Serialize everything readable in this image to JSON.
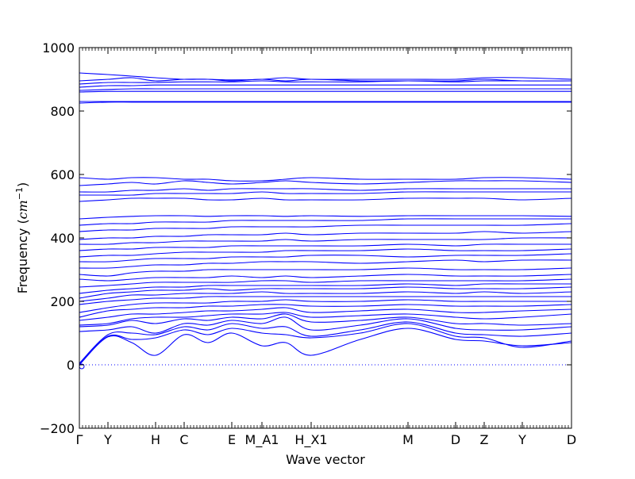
{
  "chart_data": {
    "type": "line",
    "title": "",
    "xlabel": "Wave vector",
    "ylabel": "Frequency ($cm^{-1}$)",
    "ylabel_parts": {
      "text": "Frequency (",
      "math_base": "cm",
      "math_sup": "−1",
      "close": ")"
    },
    "ylim": [
      -200,
      1000
    ],
    "xlim": [
      0,
      31
    ],
    "yticks": [
      "−200",
      "0",
      "200",
      "400",
      "600",
      "800",
      "1000"
    ],
    "ytick_values": [
      -200,
      0,
      200,
      400,
      600,
      800,
      1000
    ],
    "xtick_labels": [
      "Γ",
      "Y",
      "H",
      "C",
      "E",
      "M_A1",
      "H_X1",
      "M",
      "D",
      "Z",
      "Y",
      "D"
    ],
    "xtick_values": [
      0,
      1.8,
      4.8,
      6.6,
      9.6,
      11.5,
      14.6,
      20.7,
      23.7,
      25.5,
      27.9,
      31
    ],
    "zero_line": {
      "y": 0,
      "style": "dotted"
    },
    "grid": false,
    "legend": "none",
    "series_color": "#0000ff",
    "x_grid": [
      0,
      1.8,
      3.3,
      4.8,
      6.6,
      8.1,
      9.6,
      11.5,
      13.0,
      14.6,
      17.7,
      20.7,
      23.7,
      25.5,
      27.9,
      31
    ],
    "series": [
      {
        "values": [
          0,
          88,
          70,
          30,
          95,
          70,
          100,
          60,
          70,
          30,
          80,
          115,
          80,
          75,
          60,
          70
        ]
      },
      {
        "values": [
          2,
          90,
          80,
          85,
          110,
          95,
          115,
          100,
          95,
          85,
          100,
          130,
          90,
          85,
          55,
          75
        ]
      },
      {
        "values": [
          5,
          95,
          100,
          95,
          120,
          110,
          130,
          115,
          120,
          90,
          110,
          135,
          100,
          95,
          90,
          100
        ]
      },
      {
        "values": [
          105,
          110,
          120,
          100,
          130,
          125,
          140,
          130,
          150,
          110,
          125,
          145,
          115,
          110,
          110,
          120
        ]
      },
      {
        "values": [
          120,
          125,
          140,
          130,
          145,
          140,
          150,
          145,
          160,
          135,
          140,
          150,
          130,
          130,
          125,
          130
        ]
      },
      {
        "values": [
          125,
          130,
          145,
          150,
          150,
          155,
          160,
          160,
          165,
          150,
          155,
          160,
          150,
          145,
          150,
          160
        ]
      },
      {
        "values": [
          140,
          150,
          160,
          160,
          165,
          170,
          170,
          175,
          180,
          165,
          170,
          175,
          165,
          165,
          170,
          175
        ]
      },
      {
        "values": [
          150,
          170,
          175,
          180,
          180,
          185,
          185,
          190,
          190,
          185,
          185,
          190,
          185,
          185,
          185,
          190
        ]
      },
      {
        "values": [
          165,
          180,
          190,
          195,
          195,
          195,
          200,
          200,
          205,
          200,
          200,
          205,
          200,
          200,
          200,
          200
        ]
      },
      {
        "values": [
          190,
          200,
          205,
          210,
          210,
          215,
          215,
          215,
          215,
          215,
          215,
          215,
          215,
          215,
          215,
          215
        ]
      },
      {
        "values": [
          200,
          210,
          220,
          220,
          225,
          225,
          225,
          230,
          225,
          225,
          225,
          230,
          225,
          230,
          225,
          230
        ]
      },
      {
        "values": [
          210,
          225,
          230,
          235,
          235,
          240,
          235,
          240,
          240,
          240,
          240,
          245,
          240,
          240,
          240,
          245
        ]
      },
      {
        "values": [
          225,
          235,
          240,
          245,
          245,
          250,
          250,
          250,
          250,
          250,
          250,
          255,
          250,
          255,
          255,
          255
        ]
      },
      {
        "values": [
          245,
          250,
          255,
          260,
          260,
          260,
          260,
          265,
          265,
          260,
          265,
          265,
          265,
          265,
          265,
          270
        ]
      },
      {
        "values": [
          270,
          265,
          270,
          275,
          275,
          275,
          280,
          275,
          280,
          275,
          280,
          285,
          280,
          280,
          280,
          285
        ]
      },
      {
        "values": [
          285,
          280,
          290,
          295,
          295,
          300,
          300,
          300,
          300,
          300,
          300,
          305,
          300,
          300,
          300,
          305
        ]
      },
      {
        "values": [
          305,
          305,
          310,
          315,
          315,
          320,
          320,
          325,
          325,
          325,
          320,
          325,
          330,
          325,
          330,
          330
        ]
      },
      {
        "values": [
          325,
          325,
          330,
          335,
          335,
          335,
          340,
          340,
          340,
          345,
          345,
          340,
          345,
          345,
          345,
          350
        ]
      },
      {
        "values": [
          340,
          345,
          345,
          350,
          355,
          355,
          355,
          355,
          360,
          360,
          360,
          365,
          360,
          360,
          360,
          365
        ]
      },
      {
        "values": [
          360,
          365,
          365,
          370,
          370,
          370,
          375,
          375,
          375,
          375,
          375,
          380,
          375,
          380,
          380,
          380
        ]
      },
      {
        "values": [
          380,
          380,
          385,
          385,
          390,
          390,
          390,
          390,
          395,
          390,
          395,
          395,
          395,
          395,
          400,
          400
        ]
      },
      {
        "values": [
          395,
          400,
          400,
          405,
          405,
          410,
          410,
          410,
          415,
          410,
          415,
          415,
          415,
          420,
          415,
          420
        ]
      },
      {
        "values": [
          420,
          425,
          425,
          430,
          430,
          430,
          435,
          435,
          435,
          435,
          440,
          440,
          440,
          440,
          440,
          445
        ]
      },
      {
        "values": [
          440,
          445,
          445,
          450,
          450,
          450,
          455,
          455,
          455,
          455,
          455,
          460,
          460,
          460,
          460,
          460
        ]
      },
      {
        "values": [
          460,
          465,
          468,
          470,
          470,
          468,
          470,
          470,
          468,
          470,
          468,
          470,
          470,
          470,
          470,
          468
        ]
      },
      {
        "values": [
          515,
          520,
          525,
          525,
          525,
          520,
          520,
          525,
          520,
          520,
          520,
          525,
          525,
          525,
          520,
          525
        ]
      },
      {
        "values": [
          535,
          535,
          535,
          540,
          540,
          540,
          540,
          545,
          540,
          540,
          540,
          545,
          545,
          545,
          545,
          545
        ]
      },
      {
        "values": [
          545,
          545,
          550,
          550,
          555,
          550,
          555,
          555,
          555,
          555,
          550,
          555,
          555,
          555,
          555,
          555
        ]
      },
      {
        "values": [
          565,
          570,
          575,
          570,
          580,
          575,
          570,
          575,
          580,
          575,
          570,
          575,
          580,
          580,
          580,
          575
        ]
      },
      {
        "values": [
          590,
          585,
          590,
          590,
          585,
          585,
          580,
          580,
          585,
          590,
          585,
          585,
          585,
          590,
          590,
          585
        ]
      },
      {
        "values": [
          825,
          828,
          828,
          828,
          828,
          828,
          828,
          828,
          828,
          828,
          828,
          828,
          828,
          828,
          828,
          828
        ]
      },
      {
        "values": [
          830,
          830,
          830,
          830,
          830,
          830,
          830,
          830,
          830,
          830,
          830,
          830,
          830,
          830,
          830,
          830
        ]
      },
      {
        "values": [
          860,
          862,
          862,
          862,
          862,
          862,
          862,
          862,
          862,
          862,
          862,
          862,
          862,
          862,
          862,
          862
        ]
      },
      {
        "values": [
          865,
          868,
          870,
          870,
          870,
          870,
          870,
          870,
          870,
          870,
          870,
          870,
          870,
          870,
          870,
          870
        ]
      },
      {
        "values": [
          875,
          880,
          880,
          882,
          882,
          882,
          882,
          882,
          882,
          882,
          882,
          882,
          882,
          882,
          882,
          882
        ]
      },
      {
        "values": [
          885,
          890,
          890,
          890,
          892,
          892,
          892,
          895,
          892,
          892,
          892,
          895,
          892,
          895,
          895,
          895
        ]
      },
      {
        "values": [
          895,
          900,
          905,
          895,
          900,
          900,
          898,
          900,
          905,
          900,
          900,
          900,
          900,
          905,
          905,
          900
        ]
      },
      {
        "values": [
          920,
          915,
          910,
          905,
          900,
          900,
          895,
          900,
          895,
          900,
          895,
          895,
          895,
          900,
          895,
          895
        ]
      }
    ]
  }
}
